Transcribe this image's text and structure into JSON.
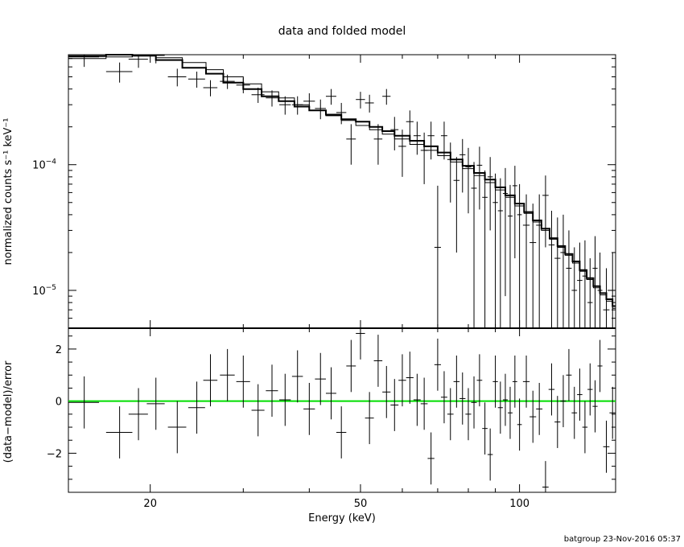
{
  "title": "data and folded model",
  "footer": "batgroup 23-Nov-2016 05:37",
  "colors": {
    "axes": "#000000",
    "data": "#000000",
    "model": "#000000",
    "zero_line": "#00dd00"
  },
  "chart_data": [
    {
      "type": "line",
      "panel": "spectrum",
      "title": "data and folded model",
      "ylabel": "normalized counts s⁻¹ keV⁻¹",
      "yscale": "log",
      "xscale": "log",
      "xlim": [
        14.0,
        152.0
      ],
      "ylim": [
        5e-06,
        0.00075
      ],
      "y_tick_labels": [
        {
          "value": 0.0001,
          "base": "10",
          "exp": "−4"
        },
        {
          "value": 1e-05,
          "base": "10",
          "exp": "−5"
        }
      ],
      "series": [
        {
          "kind": "data",
          "x": [
            15,
            17.5,
            19,
            20.5,
            22.5,
            24.5,
            26,
            28,
            30,
            32,
            34,
            36,
            38,
            40,
            42,
            44,
            46,
            48,
            50,
            52,
            54,
            56,
            58,
            60,
            62,
            64,
            66,
            68,
            70,
            72,
            74,
            76,
            78,
            80,
            82,
            84,
            86,
            88,
            90,
            92,
            94,
            96,
            98,
            100,
            103,
            106,
            109,
            112,
            115,
            118,
            121,
            124,
            127,
            130,
            133,
            136,
            139,
            142,
            146,
            150
          ],
          "xerr": [
            1.0,
            1.0,
            0.8,
            0.8,
            0.9,
            0.9,
            0.8,
            0.9,
            0.9,
            0.9,
            0.9,
            0.9,
            0.9,
            1.0,
            1.0,
            1.0,
            1.0,
            1.0,
            1.0,
            1.0,
            1.0,
            1.0,
            1.0,
            1.0,
            1.0,
            1.0,
            1.0,
            1.0,
            1.0,
            1.0,
            1.0,
            1.0,
            1.0,
            1.0,
            1.0,
            1.0,
            1.0,
            1.0,
            1.0,
            1.0,
            1.0,
            1.0,
            1.0,
            1.0,
            1.5,
            1.5,
            1.5,
            1.5,
            1.5,
            1.5,
            1.5,
            1.5,
            1.5,
            1.5,
            1.5,
            1.5,
            1.5,
            1.5,
            2.0,
            2.0
          ],
          "y": [
            0.00072,
            0.00055,
            0.00069,
            0.00074,
            0.0005,
            0.00048,
            0.00041,
            0.00046,
            0.00043,
            0.00036,
            0.00034,
            0.0003,
            0.0003,
            0.00032,
            0.00028,
            0.00035,
            0.00026,
            0.00016,
            0.00033,
            0.00031,
            0.00016,
            0.00035,
            0.00019,
            0.00014,
            0.00022,
            0.00017,
            0.00013,
            0.00017,
            2.2e-05,
            0.00017,
            0.00011,
            7.5e-05,
            0.00012,
            9.6e-05,
            6.5e-05,
            9.9e-05,
            5.5e-05,
            8e-05,
            5e-05,
            4.3e-05,
            5.9e-05,
            3.9e-05,
            6.8e-05,
            4e-05,
            3.3e-05,
            2.4e-05,
            3.3e-05,
            5.7e-05,
            2.3e-05,
            1.8e-05,
            2e-05,
            1.5e-05,
            1e-05,
            1.2e-05,
            1.3e-05,
            8e-06,
            1.5e-05,
            1e-05,
            7e-06,
            1e-05
          ],
          "yerr": [
            [
              0.00012,
              0.00012
            ],
            [
              0.0001,
              0.0001
            ],
            [
              0.0001,
              0.0001
            ],
            [
              0.0001,
              0.0001
            ],
            [
              8e-05,
              8e-05
            ],
            [
              7e-05,
              7e-05
            ],
            [
              6e-05,
              6e-05
            ],
            [
              6e-05,
              6e-05
            ],
            [
              6e-05,
              6e-05
            ],
            [
              5e-05,
              5e-05
            ],
            [
              5e-05,
              5e-05
            ],
            [
              5e-05,
              5e-05
            ],
            [
              5e-05,
              5e-05
            ],
            [
              5e-05,
              5e-05
            ],
            [
              5e-05,
              5e-05
            ],
            [
              5e-05,
              5e-05
            ],
            [
              5e-05,
              5e-05
            ],
            [
              6e-05,
              5e-05
            ],
            [
              5e-05,
              5e-05
            ],
            [
              5e-05,
              5e-05
            ],
            [
              6e-05,
              5e-05
            ],
            [
              5e-05,
              5e-05
            ],
            [
              6e-05,
              5e-05
            ],
            [
              6e-05,
              5e-05
            ],
            [
              5e-05,
              5e-05
            ],
            [
              5e-05,
              5e-05
            ],
            [
              6e-05,
              5e-05
            ],
            [
              6e-05,
              5e-05
            ],
            [
              1.9e-05,
              4.6e-05
            ],
            [
              6e-05,
              5e-05
            ],
            [
              6e-05,
              4e-05
            ],
            [
              5.5e-05,
              4e-05
            ],
            [
              6e-05,
              4e-05
            ],
            [
              5.5e-05,
              4e-05
            ],
            [
              6e-05,
              4e-05
            ],
            [
              5.5e-05,
              4e-05
            ],
            [
              5e-05,
              3.5e-05
            ],
            [
              5e-05,
              3.5e-05
            ],
            [
              4.6e-05,
              3.5e-05
            ],
            [
              3.9e-05,
              3.5e-05
            ],
            [
              5e-05,
              3.5e-05
            ],
            [
              3.5e-05,
              3e-05
            ],
            [
              5e-05,
              3e-05
            ],
            [
              3.6e-05,
              3e-05
            ],
            [
              2.9e-05,
              2.5e-05
            ],
            [
              2e-05,
              2.5e-05
            ],
            [
              2.9e-05,
              2.5e-05
            ],
            [
              3.5e-05,
              2.5e-05
            ],
            [
              1.9e-05,
              2e-05
            ],
            [
              1.4e-05,
              2e-05
            ],
            [
              1.6e-05,
              2e-05
            ],
            [
              1.1e-05,
              1.5e-05
            ],
            [
              6e-06,
              1.2e-05
            ],
            [
              8e-06,
              1.2e-05
            ],
            [
              9e-06,
              1.2e-05
            ],
            [
              4e-06,
              1e-05
            ],
            [
              1.1e-05,
              1.2e-05
            ],
            [
              6e-06,
              1e-05
            ],
            [
              3e-06,
              8e-06
            ],
            [
              6e-06,
              1e-05
            ]
          ]
        },
        {
          "kind": "model",
          "style": "thick",
          "x": [
            14.0,
            16.5,
            18.5,
            20.5,
            23.0,
            25.5,
            27.5,
            30.0,
            32.5,
            35.0,
            37.5,
            40.0,
            43.0,
            46.0,
            49.0,
            52.0,
            55.0,
            58.0,
            62.0,
            66.0,
            70.0,
            74.0,
            78.0,
            82.0,
            86.0,
            90.0,
            94.0,
            98.0,
            102.0,
            106.0,
            110.0,
            114.0,
            118.0,
            122.0,
            126.0,
            130.0,
            134.0,
            138.0,
            142.0,
            146.0,
            150.0,
            152.0
          ],
          "y": [
            0.00073,
            0.00075,
            0.00074,
            0.00068,
            0.00059,
            0.00053,
            0.00045,
            0.0004,
            0.00035,
            0.00032,
            0.00029,
            0.00027,
            0.00025,
            0.00023,
            0.00022,
            0.0002,
            0.000185,
            0.00017,
            0.000155,
            0.00014,
            0.000125,
            0.00011,
            9.8e-05,
            8.6e-05,
            7.6e-05,
            6.6e-05,
            5.7e-05,
            4.9e-05,
            4.2e-05,
            3.6e-05,
            3.1e-05,
            2.6e-05,
            2.25e-05,
            1.95e-05,
            1.7e-05,
            1.45e-05,
            1.25e-05,
            1.08e-05,
            9.5e-06,
            8.5e-06,
            7.5e-06,
            7.5e-06
          ]
        },
        {
          "kind": "model",
          "style": "thin",
          "x": [
            14.0,
            16.5,
            18.5,
            20.5,
            23.0,
            25.5,
            27.5,
            30.0,
            32.5,
            35.0,
            37.5,
            40.0,
            43.0,
            46.0,
            49.0,
            52.0,
            55.0,
            58.0,
            62.0,
            66.0,
            70.0,
            74.0,
            78.0,
            82.0,
            86.0,
            90.0,
            94.0,
            98.0,
            102.0,
            106.0,
            110.0,
            114.0,
            118.0,
            122.0,
            126.0,
            130.0,
            134.0,
            138.0,
            142.0,
            146.0,
            150.0,
            152.0
          ],
          "y": [
            0.0007,
            0.00072,
            0.00073,
            0.00071,
            0.00065,
            0.00057,
            0.0005,
            0.00044,
            0.00038,
            0.00034,
            0.0003,
            0.00027,
            0.000245,
            0.000225,
            0.000205,
            0.00019,
            0.000175,
            0.00016,
            0.000145,
            0.00013,
            0.000118,
            0.000105,
            9.3e-05,
            8.2e-05,
            7.2e-05,
            6.3e-05,
            5.5e-05,
            4.7e-05,
            4.1e-05,
            3.5e-05,
            3e-05,
            2.55e-05,
            2.2e-05,
            1.9e-05,
            1.65e-05,
            1.42e-05,
            1.22e-05,
            1.05e-05,
            9.2e-06,
            8.2e-06,
            7.2e-06,
            7.2e-06
          ]
        }
      ]
    },
    {
      "type": "scatter",
      "panel": "residuals",
      "xlabel": "Energy (keV)",
      "ylabel": "(data−model)/error",
      "xscale": "log",
      "xlim": [
        14.0,
        152.0
      ],
      "ylim": [
        -3.5,
        2.8
      ],
      "y_ticks": [
        2,
        0,
        -2
      ],
      "y_tick_labels": [
        "2",
        "0",
        "−2"
      ],
      "x_ticks": [
        20,
        50,
        100
      ],
      "x_tick_labels": [
        "20",
        "50",
        "100"
      ],
      "zero_line": 0,
      "series": [
        {
          "kind": "residuals",
          "x": [
            15,
            17.5,
            19,
            20.5,
            22.5,
            24.5,
            26,
            28,
            30,
            32,
            34,
            36,
            38,
            40,
            42,
            44,
            46,
            48,
            50,
            52,
            54,
            56,
            58,
            60,
            62,
            64,
            66,
            68,
            70,
            72,
            74,
            76,
            78,
            80,
            82,
            84,
            86,
            88,
            90,
            92,
            94,
            96,
            98,
            100,
            103,
            106,
            109,
            112,
            115,
            118,
            121,
            124,
            127,
            130,
            133,
            136,
            139,
            142,
            146,
            150
          ],
          "xerr": [
            1.0,
            1.0,
            0.8,
            0.8,
            0.9,
            0.9,
            0.8,
            0.9,
            0.9,
            0.9,
            0.9,
            0.9,
            0.9,
            1.0,
            1.0,
            1.0,
            1.0,
            1.0,
            1.0,
            1.0,
            1.0,
            1.0,
            1.0,
            1.0,
            1.0,
            1.0,
            1.0,
            1.0,
            1.0,
            1.0,
            1.0,
            1.0,
            1.0,
            1.0,
            1.0,
            1.0,
            1.0,
            1.0,
            1.0,
            1.0,
            1.0,
            1.0,
            1.0,
            1.0,
            1.5,
            1.5,
            1.5,
            1.5,
            1.5,
            1.5,
            1.5,
            1.5,
            1.5,
            1.5,
            1.5,
            1.5,
            1.5,
            1.5,
            2.0,
            2.0
          ],
          "y": [
            -0.05,
            -1.2,
            -0.5,
            -0.1,
            -1.0,
            -0.25,
            0.8,
            1.0,
            0.75,
            -0.35,
            0.4,
            0.05,
            0.95,
            -0.3,
            0.85,
            0.3,
            -1.2,
            1.35,
            2.6,
            -0.65,
            1.55,
            0.35,
            -0.15,
            0.8,
            0.9,
            0.05,
            -0.1,
            -2.2,
            1.4,
            0.15,
            -0.5,
            0.75,
            0.1,
            -0.5,
            -0.05,
            0.8,
            -1.05,
            -2.05,
            0.75,
            -0.25,
            0.05,
            -0.45,
            0.75,
            -0.9,
            0.75,
            -0.6,
            -0.3,
            -3.3,
            0.45,
            -0.8,
            0.0,
            1.0,
            -0.45,
            0.25,
            -1.0,
            0.45,
            -0.2,
            1.35,
            -1.75,
            -0.45
          ],
          "yerr": [
            1.0,
            1.0,
            1.0,
            1.0,
            1.0,
            1.0,
            1.0,
            1.0,
            1.0,
            1.0,
            1.0,
            1.0,
            1.0,
            1.0,
            1.0,
            1.0,
            1.0,
            1.0,
            1.0,
            1.0,
            1.0,
            1.0,
            1.0,
            1.0,
            1.0,
            1.0,
            1.0,
            1.0,
            1.0,
            1.0,
            1.0,
            1.0,
            1.0,
            1.0,
            1.0,
            1.0,
            1.0,
            1.0,
            1.0,
            1.0,
            1.0,
            1.0,
            1.0,
            1.0,
            1.0,
            1.0,
            1.0,
            1.0,
            1.0,
            1.0,
            1.0,
            1.0,
            1.0,
            1.0,
            1.0,
            1.0,
            1.0,
            1.0,
            1.0,
            1.0
          ]
        }
      ]
    }
  ]
}
